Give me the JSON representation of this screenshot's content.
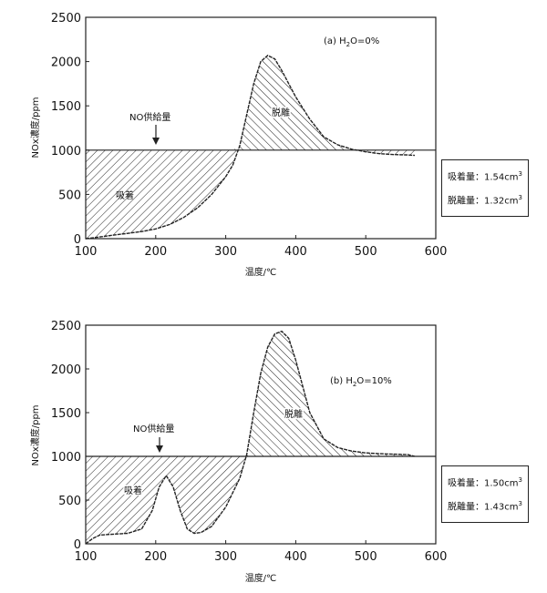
{
  "chart_data": [
    {
      "type": "line",
      "panel": "top",
      "annotation": "(a) H2O=0%",
      "ylabel": "NOx濃度/ppm",
      "xlabel": "温度/℃",
      "xlim": [
        100,
        600
      ],
      "ylim": [
        0,
        2500
      ],
      "xticks": [
        100,
        200,
        300,
        400,
        500,
        600
      ],
      "yticks": [
        0,
        500,
        1000,
        1500,
        2000,
        2500
      ],
      "feed_level": 1000,
      "feed_label": "NO供給量",
      "feed_arrow_x": 200,
      "adsorption_label": "吸着",
      "desorption_label": "脱離",
      "series": [
        {
          "name": "NOx",
          "x": [
            100,
            120,
            140,
            160,
            180,
            200,
            220,
            240,
            260,
            280,
            300,
            310,
            320,
            330,
            340,
            350,
            360,
            370,
            380,
            390,
            400,
            420,
            440,
            460,
            480,
            500,
            520,
            540,
            560,
            570
          ],
          "y": [
            0,
            20,
            40,
            60,
            80,
            110,
            160,
            240,
            350,
            500,
            700,
            830,
            1050,
            1400,
            1750,
            2000,
            2070,
            2030,
            1900,
            1750,
            1600,
            1350,
            1150,
            1060,
            1010,
            980,
            960,
            950,
            945,
            940
          ]
        }
      ],
      "box": {
        "adsorption_text": "吸着量：1.54cm",
        "desorption_text": "脱離量：1.32cm",
        "unit_exp": "3"
      }
    },
    {
      "type": "line",
      "panel": "bottom",
      "annotation": "(b) H2O=10%",
      "ylabel": "NOx濃度/ppm",
      "xlabel": "温度/℃",
      "xlim": [
        100,
        600
      ],
      "ylim": [
        0,
        2500
      ],
      "xticks": [
        100,
        200,
        300,
        400,
        500,
        600
      ],
      "yticks": [
        0,
        500,
        1000,
        1500,
        2000,
        2500
      ],
      "feed_level": 1000,
      "feed_label": "NO供給量",
      "feed_arrow_x": 200,
      "adsorption_label": "吸着",
      "desorption_label": "脱離",
      "series": [
        {
          "name": "NOx",
          "x": [
            100,
            110,
            120,
            140,
            160,
            180,
            195,
            205,
            215,
            225,
            235,
            245,
            255,
            265,
            280,
            300,
            320,
            330,
            340,
            350,
            360,
            370,
            380,
            390,
            400,
            410,
            420,
            440,
            460,
            480,
            500,
            520,
            540,
            560,
            570
          ],
          "y": [
            0,
            60,
            100,
            110,
            120,
            170,
            380,
            650,
            780,
            650,
            380,
            170,
            120,
            130,
            200,
            420,
            750,
            1020,
            1500,
            1950,
            2250,
            2400,
            2430,
            2350,
            2100,
            1800,
            1500,
            1200,
            1100,
            1060,
            1040,
            1030,
            1025,
            1020,
            1000
          ]
        }
      ],
      "box": {
        "adsorption_text": "吸着量：1.50cm",
        "desorption_text": "脱離量：1.43cm",
        "unit_exp": "3"
      }
    }
  ]
}
